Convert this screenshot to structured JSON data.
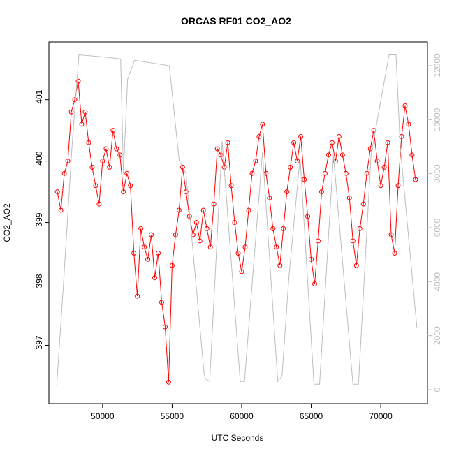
{
  "chart_data": {
    "type": "line",
    "title": "ORCAS RF01 CO2_AO2",
    "x_label": "UTC Seconds",
    "y_label": "CO2_AO2",
    "xlim": [
      46140,
      73360
    ],
    "ylim": [
      396.05,
      401.94
    ],
    "y2lim": [
      -517,
      12879
    ],
    "xticks": [
      50000,
      55000,
      60000,
      65000,
      70000
    ],
    "yticks": [
      397,
      398,
      399,
      400,
      401
    ],
    "y2ticks": [
      0,
      2000,
      4000,
      6000,
      8000,
      10000,
      12000
    ],
    "series": [
      {
        "color": "#ff0000",
        "marker": "circle",
        "x": [
          46750,
          47000,
          47250,
          47500,
          47750,
          48000,
          48250,
          48500,
          48750,
          49000,
          49250,
          49500,
          49750,
          50000,
          50250,
          50500,
          50750,
          51000,
          51250,
          51500,
          51750,
          52000,
          52250,
          52500,
          52750,
          53000,
          53250,
          53500,
          53750,
          54000,
          54250,
          54500,
          54750,
          55000,
          55250,
          55500,
          55750,
          56000,
          56250,
          56500,
          56750,
          57000,
          57250,
          57500,
          57750,
          58000,
          58250,
          58500,
          58750,
          59000,
          59250,
          59500,
          59750,
          60000,
          60250,
          60500,
          60750,
          61000,
          61250,
          61500,
          61750,
          62000,
          62250,
          62500,
          62750,
          63000,
          63250,
          63500,
          63750,
          64000,
          64250,
          64500,
          64750,
          65000,
          65250,
          65500,
          65750,
          66000,
          66250,
          66500,
          66750,
          67000,
          67250,
          67500,
          67750,
          68000,
          68250,
          68500,
          68750,
          69000,
          69250,
          69500,
          69750,
          70000,
          70250,
          70500,
          70750,
          71000,
          71250,
          71500,
          71750,
          72000,
          72250,
          72500
        ],
        "values": [
          399.5,
          399.2,
          399.8,
          400.0,
          400.8,
          401.0,
          401.3,
          400.6,
          400.8,
          400.3,
          399.9,
          399.6,
          399.3,
          400.0,
          400.2,
          399.9,
          400.5,
          400.2,
          400.1,
          399.5,
          399.8,
          399.6,
          398.5,
          397.8,
          398.9,
          398.6,
          398.4,
          398.8,
          398.1,
          398.5,
          397.7,
          397.3,
          396.4,
          398.3,
          398.8,
          399.2,
          399.9,
          399.5,
          399.1,
          398.8,
          399.0,
          398.7,
          399.2,
          398.9,
          398.6,
          399.3,
          400.2,
          400.1,
          399.9,
          400.3,
          399.6,
          399.0,
          398.5,
          398.2,
          398.6,
          399.2,
          399.8,
          400.0,
          400.4,
          400.6,
          399.8,
          399.4,
          398.9,
          398.6,
          398.3,
          398.9,
          399.5,
          399.9,
          400.3,
          400.0,
          400.4,
          399.7,
          399.1,
          398.4,
          398.0,
          398.7,
          399.5,
          399.8,
          400.1,
          400.3,
          400.0,
          400.4,
          400.1,
          399.8,
          399.4,
          398.7,
          398.3,
          398.9,
          399.3,
          399.8,
          400.2,
          400.5,
          400.0,
          399.6,
          399.9,
          400.3,
          398.8,
          398.5,
          399.6,
          400.4,
          400.9,
          400.6,
          400.1,
          399.7
        ]
      },
      {
        "color": "#bebebe",
        "axis": "y2",
        "x": [
          46700,
          47200,
          47800,
          48300,
          49500,
          50500,
          51300,
          51500,
          51800,
          52300,
          54800,
          55500,
          56000,
          57300,
          57400,
          57700,
          58600,
          59900,
          60200,
          61500,
          62600,
          62900,
          63400,
          64200,
          65200,
          65600,
          66600,
          68000,
          68400,
          69300,
          70600,
          71100,
          71400,
          72600
        ],
        "values": [
          150,
          4000,
          9000,
          12400,
          12350,
          12300,
          12250,
          8000,
          11500,
          12200,
          12000,
          8500,
          8000,
          600,
          400,
          300,
          9200,
          300,
          300,
          8800,
          300,
          500,
          4200,
          8600,
          200,
          200,
          8700,
          200,
          200,
          8700,
          12400,
          12400,
          9000,
          2300
        ]
      }
    ]
  }
}
